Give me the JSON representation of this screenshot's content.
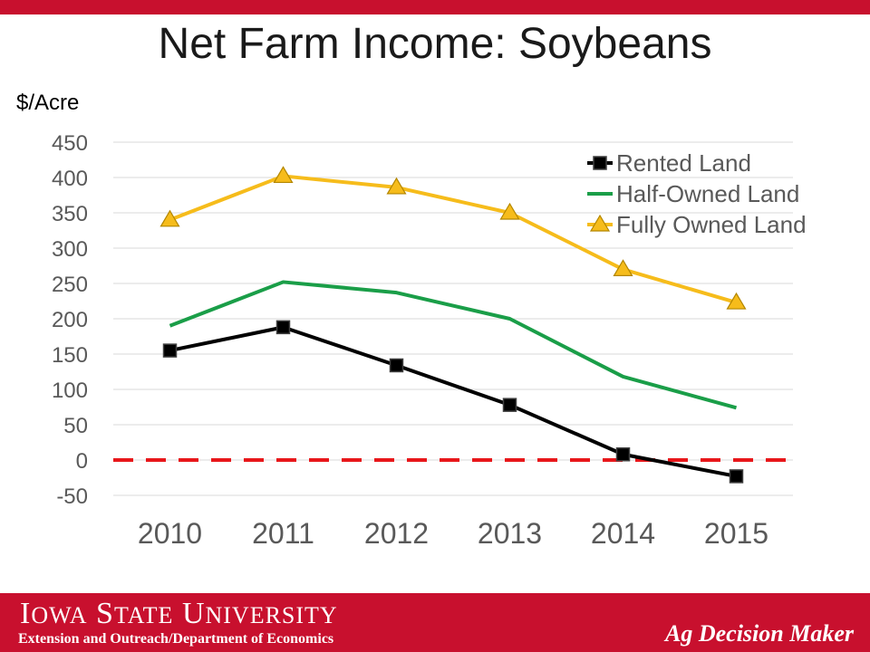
{
  "slide": {
    "title": "Net Farm Income: Soybeans",
    "unit_label": "$/Acre"
  },
  "footer": {
    "university_name": "Iowa State University",
    "department": "Extension and Outreach/Department of Economics",
    "brand": "Ag Decision Maker"
  },
  "colors": {
    "banner": "#c8102e",
    "rented": "#000000",
    "half_owned": "#1a9e48",
    "fully_owned": "#f6bc1b",
    "zero_line": "#e8171b"
  },
  "chart_data": {
    "type": "line",
    "title": "Net Farm Income: Soybeans",
    "ylabel": "$/Acre",
    "xlabel": "",
    "categories": [
      "2010",
      "2011",
      "2012",
      "2013",
      "2014",
      "2015"
    ],
    "ylim": [
      -50,
      450
    ],
    "yticks": [
      450,
      400,
      350,
      300,
      250,
      200,
      150,
      100,
      50,
      0,
      -50
    ],
    "grid": true,
    "legend_position": "top-right",
    "reference_line": {
      "value": 0,
      "style": "dashed"
    },
    "series": [
      {
        "name": "Rented Land",
        "marker": "square",
        "values": [
          155,
          188,
          134,
          78,
          8,
          -23
        ]
      },
      {
        "name": "Half-Owned Land",
        "marker": "none",
        "values": [
          190,
          252,
          237,
          200,
          118,
          74
        ]
      },
      {
        "name": "Fully Owned Land",
        "marker": "triangle",
        "values": [
          340,
          402,
          386,
          350,
          270,
          223
        ]
      }
    ]
  }
}
